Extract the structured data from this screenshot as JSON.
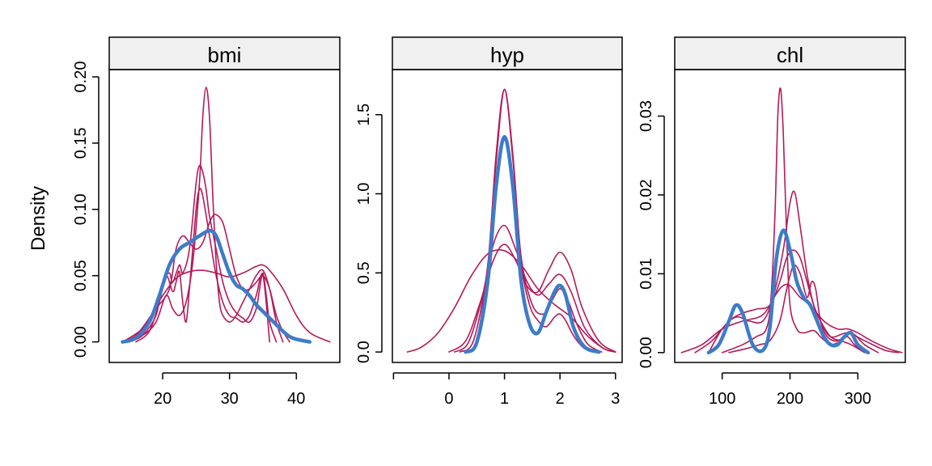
{
  "colors": {
    "observed": "#3D7CC9",
    "imputed": "#B5195A",
    "strip": "#F0F0F0"
  },
  "chart_data": {
    "type": "line",
    "ylabel": "Density",
    "panels": [
      {
        "title": "bmi",
        "xlim": [
          12.0,
          46.5
        ],
        "ylim": [
          -0.0155,
          0.2055
        ],
        "xticks": [
          20,
          30,
          40
        ],
        "xtick_labels": [
          "20",
          "30",
          "40"
        ],
        "yticks": [
          0,
          0.05,
          0.1,
          0.15,
          0.2
        ],
        "ytick_labels": [
          "0.00",
          "0.05",
          "0.10",
          "0.15",
          "0.20"
        ],
        "series": [
          {
            "role": "imputed",
            "x": [
              14,
              17,
              19,
              20.5,
              21.5,
              22.5,
              23.5,
              24.5,
              25.5,
              26,
              26.5,
              27,
              27.5,
              28,
              28.5,
              29,
              30,
              31,
              32,
              33,
              34,
              35,
              36,
              37,
              38
            ],
            "y": [
              0,
              0.005,
              0.015,
              0.035,
              0.025,
              0.02,
              0.03,
              0.06,
              0.12,
              0.17,
              0.192,
              0.17,
              0.11,
              0.06,
              0.03,
              0.02,
              0.015,
              0.02,
              0.03,
              0.04,
              0.05,
              0.054,
              0.04,
              0.015,
              0
            ]
          },
          {
            "role": "imputed",
            "x": [
              15,
              17,
              19,
              20,
              21,
              21.5,
              22.5,
              23,
              24,
              25,
              25.5,
              26,
              26.5,
              27,
              28,
              29,
              30,
              31,
              32,
              33,
              34,
              34.5,
              35,
              35.5,
              36,
              37
            ],
            "y": [
              0,
              0.005,
              0.02,
              0.045,
              0.052,
              0.045,
              0.058,
              0.052,
              0.07,
              0.12,
              0.133,
              0.128,
              0.115,
              0.095,
              0.07,
              0.045,
              0.03,
              0.022,
              0.018,
              0.015,
              0.025,
              0.04,
              0.052,
              0.035,
              0.015,
              0
            ]
          },
          {
            "role": "imputed",
            "x": [
              16,
              18,
              19.5,
              20.5,
              21.5,
              22,
              22.5,
              23,
              23.5,
              24,
              25,
              25.5,
              26,
              27,
              28,
              29,
              30,
              31,
              32,
              33,
              34,
              35,
              36
            ],
            "y": [
              0,
              0.008,
              0.03,
              0.05,
              0.038,
              0.045,
              0.053,
              0.03,
              0.015,
              0.04,
              0.1,
              0.115,
              0.11,
              0.08,
              0.05,
              0.03,
              0.02,
              0.018,
              0.015,
              0.02,
              0.035,
              0.05,
              0
            ]
          },
          {
            "role": "imputed",
            "x": [
              14,
              17,
              19,
              21,
              22,
              23,
              24,
              25,
              26,
              27,
              27.5,
              28,
              29,
              30,
              31,
              32,
              33,
              34,
              35,
              36,
              37,
              38,
              39
            ],
            "y": [
              0,
              0.01,
              0.025,
              0.04,
              0.07,
              0.08,
              0.075,
              0.07,
              0.075,
              0.09,
              0.095,
              0.096,
              0.09,
              0.07,
              0.05,
              0.04,
              0.04,
              0.045,
              0.05,
              0.04,
              0.02,
              0.008,
              0
            ]
          },
          {
            "role": "imputed",
            "x": [
              14,
              16,
              18,
              20,
              22,
              24,
              26,
              28,
              30,
              32,
              34,
              35,
              36,
              38,
              40,
              42,
              45
            ],
            "y": [
              0,
              0.005,
              0.018,
              0.035,
              0.048,
              0.053,
              0.054,
              0.052,
              0.049,
              0.052,
              0.057,
              0.058,
              0.054,
              0.04,
              0.02,
              0.007,
              0
            ]
          },
          {
            "role": "observed",
            "x": [
              14,
              16,
              18,
              19.5,
              21,
              22.5,
              24,
              25.5,
              27,
              28,
              29,
              30,
              31,
              32,
              33,
              34,
              35,
              36,
              37,
              38,
              39,
              40,
              42
            ],
            "y": [
              0,
              0.003,
              0.015,
              0.035,
              0.058,
              0.07,
              0.075,
              0.08,
              0.084,
              0.08,
              0.066,
              0.052,
              0.043,
              0.04,
              0.035,
              0.028,
              0.023,
              0.018,
              0.013,
              0.008,
              0.004,
              0.002,
              0
            ]
          }
        ]
      },
      {
        "title": "hyp",
        "xlim": [
          -1.02,
          3.12
        ],
        "ylim": [
          -0.066,
          1.785
        ],
        "xticks": [
          -1,
          0,
          1,
          2,
          3
        ],
        "xtick_labels": [
          "",
          "0",
          "1",
          "2",
          "3"
        ],
        "yticks": [
          0,
          0.5,
          1.0,
          1.5
        ],
        "ytick_labels": [
          "0.0",
          "0.5",
          "1.0",
          "1.5"
        ],
        "series": [
          {
            "role": "imputed",
            "x": [
              0.3,
              0.5,
              0.7,
              0.85,
              1,
              1.15,
              1.3,
              1.45,
              1.6,
              1.75,
              1.9,
              2,
              2.1,
              2.25,
              2.45,
              2.7
            ],
            "y": [
              0,
              0.08,
              0.55,
              1.25,
              1.66,
              1.25,
              0.58,
              0.3,
              0.2,
              0.16,
              0.22,
              0.24,
              0.2,
              0.1,
              0.02,
              0
            ]
          },
          {
            "role": "imputed",
            "x": [
              0.2,
              0.45,
              0.7,
              0.85,
              1,
              1.15,
              1.3,
              1.5,
              1.7,
              1.85,
              2,
              2.15,
              2.3,
              2.5,
              2.75
            ],
            "y": [
              0,
              0.08,
              0.55,
              1.2,
              1.66,
              1.22,
              0.6,
              0.3,
              0.24,
              0.32,
              0.4,
              0.32,
              0.18,
              0.05,
              0
            ]
          },
          {
            "role": "imputed",
            "x": [
              0.1,
              0.35,
              0.6,
              0.8,
              1,
              1.2,
              1.4,
              1.6,
              1.8,
              2,
              2.2,
              2.45,
              2.75,
              3.0
            ],
            "y": [
              0,
              0.06,
              0.35,
              0.68,
              0.8,
              0.65,
              0.45,
              0.36,
              0.43,
              0.49,
              0.38,
              0.15,
              0.03,
              0
            ]
          },
          {
            "role": "imputed",
            "x": [
              0,
              0.3,
              0.55,
              0.8,
              1,
              1.2,
              1.4,
              1.6,
              1.8,
              2,
              2.2,
              2.4,
              2.7,
              3.0
            ],
            "y": [
              0,
              0.07,
              0.3,
              0.58,
              0.68,
              0.58,
              0.42,
              0.38,
              0.52,
              0.63,
              0.52,
              0.28,
              0.07,
              0
            ]
          },
          {
            "role": "imputed",
            "x": [
              -0.75,
              -0.5,
              -0.2,
              0.1,
              0.4,
              0.7,
              1,
              1.3,
              1.6,
              1.9,
              2.2,
              2.5,
              2.8,
              3.0
            ],
            "y": [
              0,
              0.03,
              0.12,
              0.28,
              0.48,
              0.62,
              0.64,
              0.55,
              0.4,
              0.3,
              0.22,
              0.1,
              0.02,
              0
            ]
          },
          {
            "role": "observed",
            "x": [
              0.3,
              0.5,
              0.7,
              0.85,
              1,
              1.15,
              1.3,
              1.45,
              1.6,
              1.75,
              1.9,
              2,
              2.1,
              2.25,
              2.45,
              2.7
            ],
            "y": [
              0,
              0.06,
              0.45,
              1.05,
              1.36,
              1.05,
              0.45,
              0.18,
              0.12,
              0.25,
              0.38,
              0.42,
              0.36,
              0.15,
              0.03,
              0
            ]
          }
        ]
      },
      {
        "title": "chl",
        "xlim": [
          30,
          370
        ],
        "ylim": [
          -0.00125,
          0.0359
        ],
        "xticks": [
          100,
          200,
          300
        ],
        "xtick_labels": [
          "100",
          "200",
          "300"
        ],
        "yticks": [
          0,
          0.01,
          0.02,
          0.03
        ],
        "ytick_labels": [
          "0.00",
          "0.01",
          "0.02",
          "0.03"
        ],
        "series": [
          {
            "role": "imputed",
            "x": [
              100,
              130,
              150,
              165,
              172,
              178,
              182,
              186,
              190,
              195,
              200,
              210,
              220,
              235,
              245,
              260,
              275,
              285,
              295,
              310
            ],
            "y": [
              0,
              0.001,
              0.002,
              0.003,
              0.007,
              0.018,
              0.03,
              0.0335,
              0.028,
              0.015,
              0.006,
              0.003,
              0.0025,
              0.0028,
              0.002,
              0.001,
              0.0015,
              0.002,
              0.001,
              0
            ]
          },
          {
            "role": "imputed",
            "x": [
              80,
              100,
              120,
              140,
              160,
              175,
              190,
              200,
              207,
              215,
              225,
              235,
              245,
              260,
              275,
              290,
              310
            ],
            "y": [
              0,
              0.003,
              0.0045,
              0.004,
              0.004,
              0.007,
              0.013,
              0.019,
              0.0203,
              0.016,
              0.01,
              0.006,
              0.004,
              0.002,
              0.0015,
              0.001,
              0
            ]
          },
          {
            "role": "imputed",
            "x": [
              60,
              85,
              110,
              130,
              150,
              170,
              185,
              195,
              205,
              215,
              225,
              235,
              245,
              260,
              285,
              310,
              340,
              360
            ],
            "y": [
              0,
              0.0015,
              0.004,
              0.005,
              0.0055,
              0.006,
              0.009,
              0.012,
              0.013,
              0.012,
              0.009,
              0.006,
              0.004,
              0.002,
              0.0025,
              0.0015,
              0.0003,
              0
            ]
          },
          {
            "role": "imputed",
            "x": [
              40,
              70,
              100,
              130,
              160,
              180,
              190,
              200,
              215,
              230,
              250,
              270,
              285,
              300,
              320,
              345,
              365
            ],
            "y": [
              0,
              0.001,
              0.003,
              0.004,
              0.0048,
              0.0075,
              0.0085,
              0.0085,
              0.007,
              0.006,
              0.004,
              0.003,
              0.003,
              0.0025,
              0.0015,
              0.0005,
              0
            ]
          },
          {
            "role": "imputed",
            "x": [
              110,
              135,
              155,
              170,
              185,
              195,
              205,
              215,
              225,
              232,
              238,
              245,
              255,
              270,
              290,
              310,
              330
            ],
            "y": [
              0,
              0.0005,
              0.001,
              0.0015,
              0.004,
              0.008,
              0.011,
              0.01,
              0.007,
              0.009,
              0.008,
              0.004,
              0.002,
              0.0015,
              0.0025,
              0.001,
              0
            ]
          },
          {
            "role": "observed",
            "x": [
              80,
              95,
              110,
              120,
              130,
              145,
              160,
              170,
              180,
              190,
              200,
              210,
              220,
              230,
              240,
              250,
              260,
              270,
              280,
              290,
              300,
              315
            ],
            "y": [
              0,
              0.001,
              0.004,
              0.006,
              0.005,
              0.001,
              0.0003,
              0.003,
              0.012,
              0.0155,
              0.013,
              0.009,
              0.007,
              0.006,
              0.004,
              0.002,
              0.001,
              0.001,
              0.002,
              0.0025,
              0.001,
              0
            ]
          }
        ]
      }
    ]
  }
}
